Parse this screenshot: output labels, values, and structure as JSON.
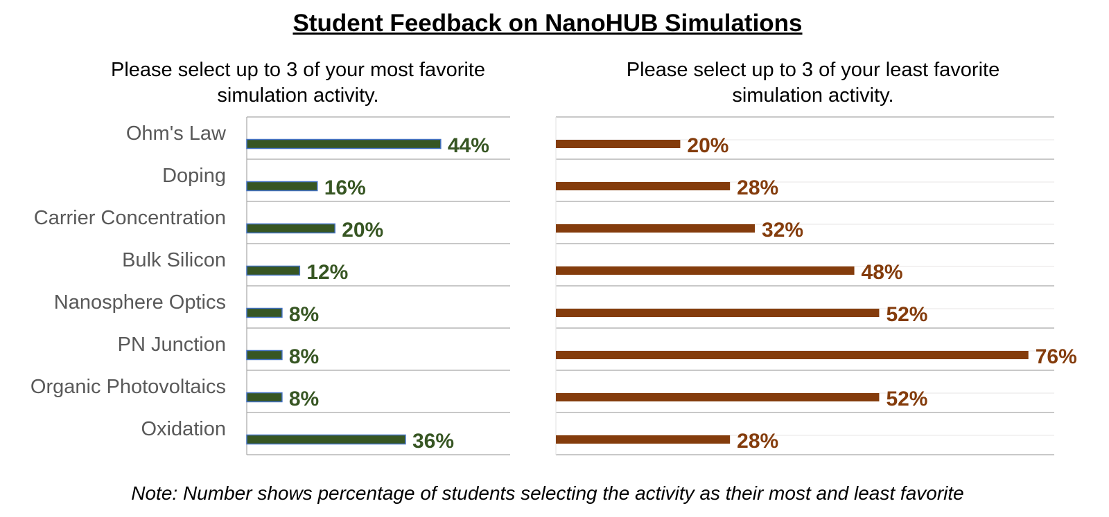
{
  "title": "Student Feedback on NanoHUB Simulations",
  "note": "Note: Number shows percentage of students selecting the activity as their most and least favorite",
  "colors": {
    "most": "#375623",
    "most_border": "#4472c4",
    "least": "#843c0c",
    "label_gray": "#595959",
    "gridline": "#a6a6a6",
    "gridline_light": "#e7e6e6"
  },
  "chart_data": [
    {
      "type": "bar",
      "orientation": "horizontal",
      "title": "Please select up to 3 of your most favorite simulation activity.",
      "categories": [
        "Ohm's Law",
        "Doping",
        "Carrier Concentration",
        "Bulk Silicon",
        "Nanosphere Optics",
        "PN Junction",
        "Organic Photovoltaics",
        "Oxidation"
      ],
      "values": [
        44,
        16,
        20,
        12,
        8,
        8,
        8,
        36
      ],
      "value_labels": [
        "44%",
        "16%",
        "20%",
        "12%",
        "8%",
        "8%",
        "8%",
        "36%"
      ],
      "unit": "%",
      "xlim": [
        0,
        60
      ],
      "color": "#375623"
    },
    {
      "type": "bar",
      "orientation": "horizontal",
      "title": "Please select up to 3 of your least favorite simulation activity.",
      "categories": [
        "Ohm's Law",
        "Doping",
        "Carrier Concentration",
        "Bulk Silicon",
        "Nanosphere Optics",
        "PN Junction",
        "Organic Photovoltaics",
        "Oxidation"
      ],
      "values": [
        20,
        28,
        32,
        48,
        52,
        76,
        52,
        28
      ],
      "value_labels": [
        "20%",
        "28%",
        "32%",
        "48%",
        "52%",
        "76%",
        "52%",
        "28%"
      ],
      "unit": "%",
      "xlim": [
        0,
        80
      ],
      "color": "#843c0c"
    }
  ]
}
